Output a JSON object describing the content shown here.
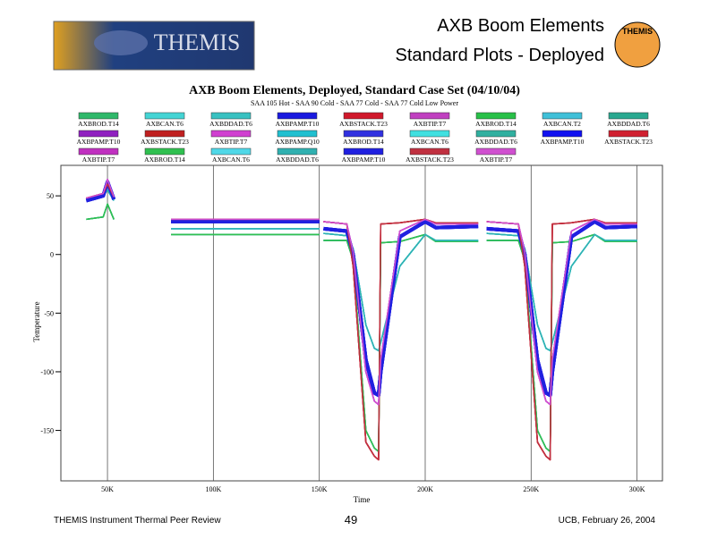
{
  "slide": {
    "title_line1": "AXB Boom Elements",
    "title_line2": "Standard Plots - Deployed",
    "logo": "THEMIS",
    "emblem": "THEMIS",
    "footer_left": "THEMIS Instrument Thermal Peer Review",
    "page_number": "49",
    "footer_right": "UCB, February 26, 2004"
  },
  "chart_data": {
    "type": "line",
    "title": "AXB Boom Elements, Deployed, Standard Case Set (04/10/04)",
    "subtitle": "SAA 105 Hot - SAA 90 Cold - SAA 77 Cold - SAA 77 Cold Low Power",
    "x_label": "Time",
    "y_label": "Temperature",
    "xlim": [
      28000,
      312000
    ],
    "ylim": [
      -193,
      76
    ],
    "xticks": [
      {
        "value": 50000,
        "label": "50K"
      },
      {
        "value": 100000,
        "label": "100K"
      },
      {
        "value": 150000,
        "label": "150K"
      },
      {
        "value": 200000,
        "label": "200K"
      },
      {
        "value": 250000,
        "label": "250K"
      },
      {
        "value": 300000,
        "label": "300K"
      }
    ],
    "yticks": [
      50,
      0,
      -50,
      -100,
      -150
    ],
    "grid": true,
    "x": [
      40000,
      48000,
      50000,
      53000,
      60000,
      80000,
      150000,
      151000,
      152000,
      163000,
      166000,
      172000,
      176000,
      178000,
      179000,
      188000,
      200000,
      205000,
      225000,
      227000,
      229000,
      244000,
      247000,
      253000,
      257000,
      259000,
      260000,
      269000,
      280000,
      285000,
      300000
    ],
    "series": [
      {
        "name": "AXBROD.T14",
        "color": "#2fb86a",
        "values": [
          30,
          32,
          43,
          30,
          null,
          17,
          17,
          null,
          12,
          12,
          -5,
          -150,
          -165,
          -168,
          10,
          11,
          17,
          11,
          11,
          null,
          12,
          12,
          -5,
          -150,
          -165,
          -168,
          10,
          11,
          17,
          11,
          11
        ]
      },
      {
        "name": "AXBCAN.T6",
        "color": "#44d4d4",
        "values": [
          47,
          50,
          55,
          46,
          null,
          22,
          22,
          null,
          18,
          16,
          5,
          -60,
          -80,
          -82,
          -75,
          -10,
          17,
          12,
          12,
          null,
          18,
          16,
          5,
          -60,
          -80,
          -82,
          -75,
          -10,
          17,
          12,
          12
        ]
      },
      {
        "name": "AXBDDAD.T6",
        "color": "#39c1c1",
        "values": [
          47,
          50,
          55,
          46,
          null,
          22,
          22,
          null,
          18,
          16,
          5,
          -60,
          -80,
          -82,
          -75,
          -10,
          17,
          12,
          12,
          null,
          18,
          16,
          5,
          -60,
          -80,
          -82,
          -75,
          -10,
          17,
          12,
          12
        ]
      },
      {
        "name": "AXBPAMP.T10",
        "color": "#1a1adf",
        "values": [
          46,
          50,
          62,
          47,
          null,
          28,
          28,
          null,
          22,
          20,
          0,
          -90,
          -118,
          -120,
          -100,
          15,
          28,
          23,
          24,
          null,
          22,
          20,
          0,
          -90,
          -118,
          -120,
          -100,
          15,
          28,
          23,
          24
        ]
      },
      {
        "name": "AXBSTACK.T23",
        "color": "#d0182b",
        "values": [
          48,
          52,
          60,
          49,
          null,
          30,
          30,
          null,
          28,
          26,
          -10,
          -160,
          -172,
          -175,
          26,
          27,
          30,
          27,
          27,
          null,
          28,
          26,
          -10,
          -160,
          -172,
          -175,
          26,
          27,
          30,
          27,
          27
        ]
      },
      {
        "name": "AXBTIP.T7",
        "color": "#c040c0",
        "values": [
          48,
          52,
          64,
          49,
          null,
          30,
          30,
          null,
          28,
          26,
          2,
          -100,
          -125,
          -128,
          -90,
          20,
          30,
          26,
          26,
          null,
          28,
          26,
          2,
          -100,
          -125,
          -128,
          -90,
          20,
          30,
          26,
          26
        ]
      },
      {
        "name": "AXBROD.T14",
        "color": "#28c048",
        "values": [
          30,
          32,
          43,
          30,
          null,
          17,
          17,
          null,
          12,
          12,
          -5,
          -150,
          -165,
          -168,
          10,
          11,
          17,
          11,
          11,
          null,
          12,
          12,
          -5,
          -150,
          -165,
          -168,
          10,
          11,
          17,
          11,
          11
        ]
      },
      {
        "name": "AXBCAN.T2",
        "color": "#40c0d8",
        "values": [
          47,
          50,
          55,
          46,
          null,
          22,
          22,
          null,
          18,
          16,
          5,
          -60,
          -80,
          -82,
          -75,
          -10,
          17,
          12,
          12,
          null,
          18,
          16,
          5,
          -60,
          -80,
          -82,
          -75,
          -10,
          17,
          12,
          12
        ]
      },
      {
        "name": "AXBDDAD.T6",
        "color": "#2aa890",
        "values": [
          30,
          32,
          43,
          30,
          null,
          17,
          17,
          null,
          12,
          12,
          -5,
          -150,
          -165,
          -168,
          10,
          11,
          17,
          11,
          11,
          null,
          12,
          12,
          -5,
          -150,
          -165,
          -168,
          10,
          11,
          17,
          11,
          11
        ]
      },
      {
        "name": "AXBPAMP.T10",
        "color": "#9020c0",
        "values": [
          48,
          52,
          64,
          49,
          null,
          30,
          30,
          null,
          28,
          26,
          2,
          -100,
          -125,
          -128,
          -90,
          20,
          30,
          26,
          26,
          null,
          28,
          26,
          2,
          -100,
          -125,
          -128,
          -90,
          20,
          30,
          26,
          26
        ]
      },
      {
        "name": "AXBSTACK.T23",
        "color": "#c02020",
        "values": [
          48,
          52,
          60,
          49,
          null,
          30,
          30,
          null,
          28,
          26,
          -10,
          -160,
          -172,
          -175,
          26,
          27,
          30,
          27,
          27,
          null,
          28,
          26,
          -10,
          -160,
          -172,
          -175,
          26,
          27,
          30,
          27,
          27
        ]
      },
      {
        "name": "AXBTIP.T7",
        "color": "#d040d0",
        "values": [
          48,
          52,
          64,
          49,
          null,
          30,
          30,
          null,
          28,
          26,
          2,
          -100,
          -125,
          -128,
          -90,
          20,
          30,
          26,
          26,
          null,
          28,
          26,
          2,
          -100,
          -125,
          -128,
          -90,
          20,
          30,
          26,
          26
        ]
      },
      {
        "name": "AXBPAMP.Q10",
        "color": "#20c0d0",
        "values": [
          47,
          50,
          55,
          46,
          null,
          22,
          22,
          null,
          18,
          16,
          5,
          -60,
          -80,
          -82,
          -75,
          -10,
          17,
          12,
          12,
          null,
          18,
          16,
          5,
          -60,
          -80,
          -82,
          -75,
          -10,
          17,
          12,
          12
        ]
      },
      {
        "name": "AXBROD.T14",
        "color": "#3030e0",
        "values": [
          46,
          50,
          62,
          47,
          null,
          28,
          28,
          null,
          22,
          20,
          0,
          -90,
          -118,
          -120,
          -100,
          15,
          28,
          23,
          24,
          null,
          22,
          20,
          0,
          -90,
          -118,
          -120,
          -100,
          15,
          28,
          23,
          24
        ]
      },
      {
        "name": "AXBCAN.T6",
        "color": "#40e0e0",
        "values": [
          47,
          50,
          55,
          46,
          null,
          22,
          22,
          null,
          18,
          16,
          5,
          -60,
          -80,
          -82,
          -75,
          -10,
          17,
          12,
          12,
          null,
          18,
          16,
          5,
          -60,
          -80,
          -82,
          -75,
          -10,
          17,
          12,
          12
        ]
      },
      {
        "name": "AXBDDAD.T6",
        "color": "#30b0a0",
        "values": [
          30,
          32,
          43,
          30,
          null,
          17,
          17,
          null,
          12,
          12,
          -5,
          -150,
          -165,
          -168,
          10,
          11,
          17,
          11,
          11,
          null,
          12,
          12,
          -5,
          -150,
          -165,
          -168,
          10,
          11,
          17,
          11,
          11
        ]
      },
      {
        "name": "AXBPAMP.T10",
        "color": "#1010f0",
        "values": [
          46,
          50,
          62,
          47,
          null,
          28,
          28,
          null,
          22,
          20,
          0,
          -90,
          -118,
          -120,
          -100,
          15,
          28,
          23,
          24,
          null,
          22,
          20,
          0,
          -90,
          -118,
          -120,
          -100,
          15,
          28,
          23,
          24
        ]
      },
      {
        "name": "AXBSTACK.T23",
        "color": "#d02030",
        "values": [
          48,
          52,
          60,
          49,
          null,
          30,
          30,
          null,
          28,
          26,
          -10,
          -160,
          -172,
          -175,
          26,
          27,
          30,
          27,
          27,
          null,
          28,
          26,
          -10,
          -160,
          -172,
          -175,
          26,
          27,
          30,
          27,
          27
        ]
      },
      {
        "name": "AXBTIP.T7",
        "color": "#c030c0",
        "values": [
          48,
          52,
          64,
          49,
          null,
          30,
          30,
          null,
          28,
          26,
          2,
          -100,
          -125,
          -128,
          -90,
          20,
          30,
          26,
          26,
          null,
          28,
          26,
          2,
          -100,
          -125,
          -128,
          -90,
          20,
          30,
          26,
          26
        ]
      },
      {
        "name": "AXBROD.T14",
        "color": "#30c050",
        "values": [
          30,
          32,
          43,
          30,
          null,
          17,
          17,
          null,
          12,
          12,
          -5,
          -150,
          -165,
          -168,
          10,
          11,
          17,
          11,
          11,
          null,
          12,
          12,
          -5,
          -150,
          -165,
          -168,
          10,
          11,
          17,
          11,
          11
        ]
      },
      {
        "name": "AXBCAN.T6",
        "color": "#50d8e8",
        "values": [
          47,
          50,
          55,
          46,
          null,
          22,
          22,
          null,
          18,
          16,
          5,
          -60,
          -80,
          -82,
          -75,
          -10,
          17,
          12,
          12,
          null,
          18,
          16,
          5,
          -60,
          -80,
          -82,
          -75,
          -10,
          17,
          12,
          12
        ]
      },
      {
        "name": "AXBDDAD.T6",
        "color": "#30b0b0",
        "values": [
          47,
          50,
          55,
          46,
          null,
          22,
          22,
          null,
          18,
          16,
          5,
          -60,
          -80,
          -82,
          -75,
          -10,
          17,
          12,
          12,
          null,
          18,
          16,
          5,
          -60,
          -80,
          -82,
          -75,
          -10,
          17,
          12,
          12
        ]
      },
      {
        "name": "AXBPAMP.T10",
        "color": "#2020e0",
        "values": [
          46,
          50,
          62,
          47,
          null,
          28,
          28,
          null,
          22,
          20,
          0,
          -90,
          -118,
          -120,
          -100,
          15,
          28,
          23,
          24,
          null,
          22,
          20,
          0,
          -90,
          -118,
          -120,
          -100,
          15,
          28,
          23,
          24
        ]
      },
      {
        "name": "AXBSTACK.T23",
        "color": "#c03040",
        "values": [
          48,
          52,
          60,
          49,
          null,
          30,
          30,
          null,
          28,
          26,
          -10,
          -160,
          -172,
          -175,
          26,
          27,
          30,
          27,
          27,
          null,
          28,
          26,
          -10,
          -160,
          -172,
          -175,
          26,
          27,
          30,
          27,
          27
        ]
      },
      {
        "name": "AXBTIP.T7",
        "color": "#d050d0",
        "values": [
          48,
          52,
          64,
          49,
          null,
          30,
          30,
          null,
          28,
          26,
          2,
          -100,
          -125,
          -128,
          -90,
          20,
          30,
          26,
          26,
          null,
          28,
          26,
          2,
          -100,
          -125,
          -128,
          -90,
          20,
          30,
          26,
          26
        ]
      }
    ]
  }
}
